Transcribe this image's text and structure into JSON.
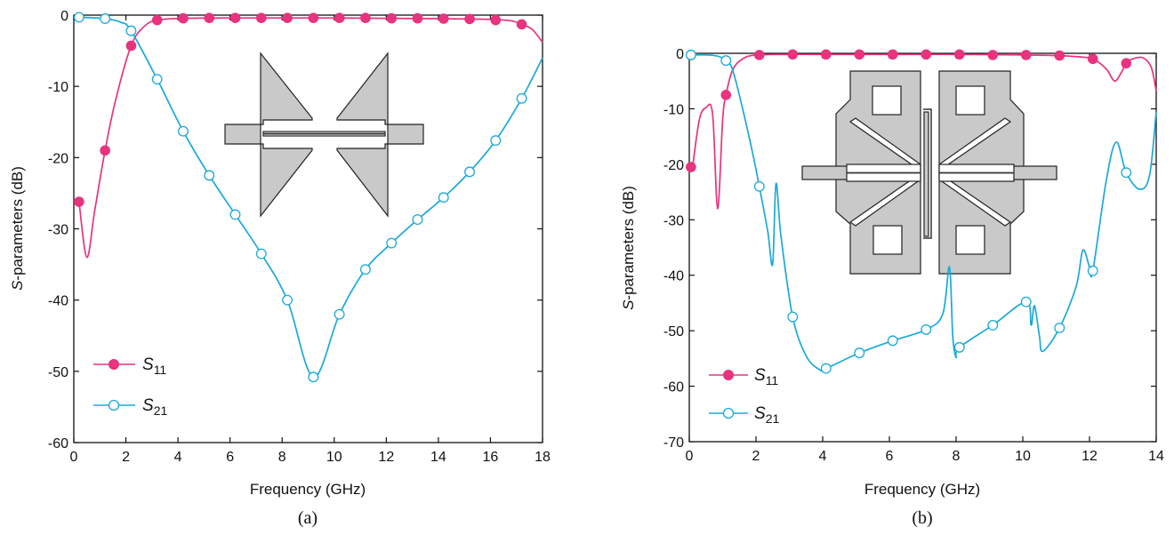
{
  "colors": {
    "s11": "#e8337e",
    "s21": "#1aa9d8",
    "inset_fill": "#c9c9c9",
    "inset_stroke": "#222222"
  },
  "chart_data": [
    {
      "type": "line",
      "caption": "(a)",
      "xlabel": "Frequency (GHz)",
      "ylabel_italic": "S",
      "ylabel_rest": "-parameters (dB)",
      "xlim": [
        0,
        18
      ],
      "ylim": [
        -60,
        0
      ],
      "xticks": [
        0,
        2,
        4,
        6,
        8,
        10,
        12,
        14,
        16,
        18
      ],
      "yticks": [
        0,
        -10,
        -20,
        -30,
        -40,
        -50,
        -60
      ],
      "legend_position": "bottom-left",
      "series": [
        {
          "name": "S11",
          "base": "S",
          "sub": "11",
          "marker": "filled",
          "x": [
            0.2,
            0.5,
            0.8,
            1.2,
            1.6,
            2.2,
            2.7,
            3.2,
            4.2,
            6,
            8,
            10,
            12,
            14,
            16,
            16.8,
            17.2,
            17.6,
            18
          ],
          "y": [
            -26.2,
            -34,
            -27.5,
            -19,
            -12,
            -4.3,
            -1.6,
            -0.7,
            -0.45,
            -0.4,
            -0.4,
            -0.4,
            -0.45,
            -0.5,
            -0.6,
            -0.8,
            -1.3,
            -2,
            -3.8
          ],
          "marker_x": [
            0.2,
            1.2,
            2.2,
            3.2,
            4.2,
            5.2,
            6.2,
            7.2,
            8.2,
            9.2,
            10.2,
            11.2,
            12.2,
            13.2,
            14.2,
            15.2,
            16.2,
            17.2
          ],
          "marker_y": [
            -26.2,
            -19,
            -4.3,
            -0.7,
            -0.45,
            -0.4,
            -0.4,
            -0.4,
            -0.4,
            -0.4,
            -0.4,
            -0.4,
            -0.45,
            -0.45,
            -0.5,
            -0.55,
            -0.7,
            -1.3
          ]
        },
        {
          "name": "S21",
          "base": "S",
          "sub": "21",
          "marker": "open",
          "x": [
            0.2,
            1.2,
            1.8,
            2.2,
            3.2,
            4.2,
            5.2,
            6.2,
            7.2,
            8.2,
            9.2,
            10.2,
            11.2,
            12.2,
            13.2,
            14.2,
            15.2,
            16.2,
            17.2,
            18
          ],
          "y": [
            -0.3,
            -0.5,
            -1,
            -2.2,
            -9,
            -16.3,
            -22.5,
            -28,
            -33.5,
            -40,
            -50.8,
            -42,
            -35.7,
            -32,
            -28.7,
            -25.6,
            -22,
            -17.6,
            -11.7,
            -6
          ],
          "marker_x": [
            0.2,
            1.2,
            2.2,
            3.2,
            4.2,
            5.2,
            6.2,
            7.2,
            8.2,
            9.2,
            10.2,
            11.2,
            12.2,
            13.2,
            14.2,
            15.2,
            16.2,
            17.2
          ],
          "marker_y": [
            -0.3,
            -0.5,
            -2.2,
            -9,
            -16.3,
            -22.5,
            -28,
            -33.5,
            -40,
            -50.8,
            -42,
            -35.7,
            -32,
            -28.7,
            -25.6,
            -22,
            -17.6,
            -11.7
          ]
        }
      ]
    },
    {
      "type": "line",
      "caption": "(b)",
      "xlabel": "Frequency (GHz)",
      "ylabel_italic": "S",
      "ylabel_rest": "-parameters (dB)",
      "xlim": [
        0,
        14
      ],
      "ylim": [
        -70,
        0
      ],
      "xticks": [
        0,
        2,
        4,
        6,
        8,
        10,
        12,
        14
      ],
      "yticks": [
        0,
        -10,
        -20,
        -30,
        -40,
        -50,
        -60,
        -70
      ],
      "legend_position": "bottom-left",
      "series": [
        {
          "name": "S11",
          "base": "S",
          "sub": "11",
          "marker": "filled",
          "x": [
            0.1,
            0.3,
            0.5,
            0.7,
            0.85,
            1.0,
            1.1,
            1.3,
            1.6,
            2.0,
            3,
            4,
            6,
            8,
            10,
            11,
            11.6,
            12.1,
            12.5,
            12.75,
            12.95,
            13.1,
            13.3,
            13.6,
            13.85,
            14
          ],
          "y": [
            -20.5,
            -12,
            -9.8,
            -11,
            -28,
            -12,
            -7.5,
            -3,
            -1,
            -0.3,
            -0.2,
            -0.2,
            -0.2,
            -0.2,
            -0.3,
            -0.4,
            -0.6,
            -1,
            -2.8,
            -5,
            -3.5,
            -1.8,
            -1,
            -0.8,
            -2.5,
            -6.8
          ],
          "marker_x": [
            0.05,
            1.1,
            2.1,
            3.1,
            4.1,
            5.1,
            6.1,
            7.1,
            8.1,
            9.1,
            10.1,
            11.1,
            12.1,
            13.1
          ],
          "marker_y": [
            -20.5,
            -7.5,
            -0.3,
            -0.2,
            -0.2,
            -0.2,
            -0.2,
            -0.2,
            -0.2,
            -0.3,
            -0.3,
            -0.4,
            -1,
            -1.8
          ]
        },
        {
          "name": "S21",
          "base": "S",
          "sub": "21",
          "marker": "open",
          "x": [
            0.05,
            0.6,
            0.9,
            1.1,
            1.3,
            1.6,
            1.9,
            2.1,
            2.35,
            2.5,
            2.6,
            2.75,
            3.1,
            3.5,
            3.9,
            4.1,
            5.1,
            6.1,
            7.1,
            7.6,
            7.8,
            7.9,
            8.0,
            8.1,
            9.1,
            10.1,
            10.25,
            10.35,
            10.5,
            10.6,
            11.1,
            11.6,
            11.8,
            12.0,
            12.1,
            12.5,
            12.8,
            13.1,
            13.5,
            13.8,
            14
          ],
          "y": [
            -0.3,
            -0.3,
            -0.6,
            -1.3,
            -3,
            -10,
            -18,
            -24,
            -32,
            -38,
            -23.5,
            -33,
            -47.5,
            -54.5,
            -57,
            -56.8,
            -54,
            -51.8,
            -49.8,
            -47,
            -38.5,
            -51,
            -54.8,
            -53,
            -49,
            -44.8,
            -49,
            -45.5,
            -51,
            -53.7,
            -49.5,
            -42,
            -35.5,
            -38.5,
            -39.2,
            -23,
            -16,
            -21.5,
            -24.5,
            -22,
            -10.5
          ],
          "marker_x": [
            0.05,
            1.1,
            2.1,
            3.1,
            4.1,
            5.1,
            6.1,
            7.1,
            8.1,
            9.1,
            10.1,
            11.1,
            12.1,
            13.1
          ],
          "marker_y": [
            -0.3,
            -1.3,
            -24,
            -47.5,
            -56.8,
            -54,
            -51.8,
            -49.8,
            -53,
            -49,
            -44.8,
            -49.5,
            -39.2,
            -21.5
          ]
        }
      ]
    }
  ]
}
